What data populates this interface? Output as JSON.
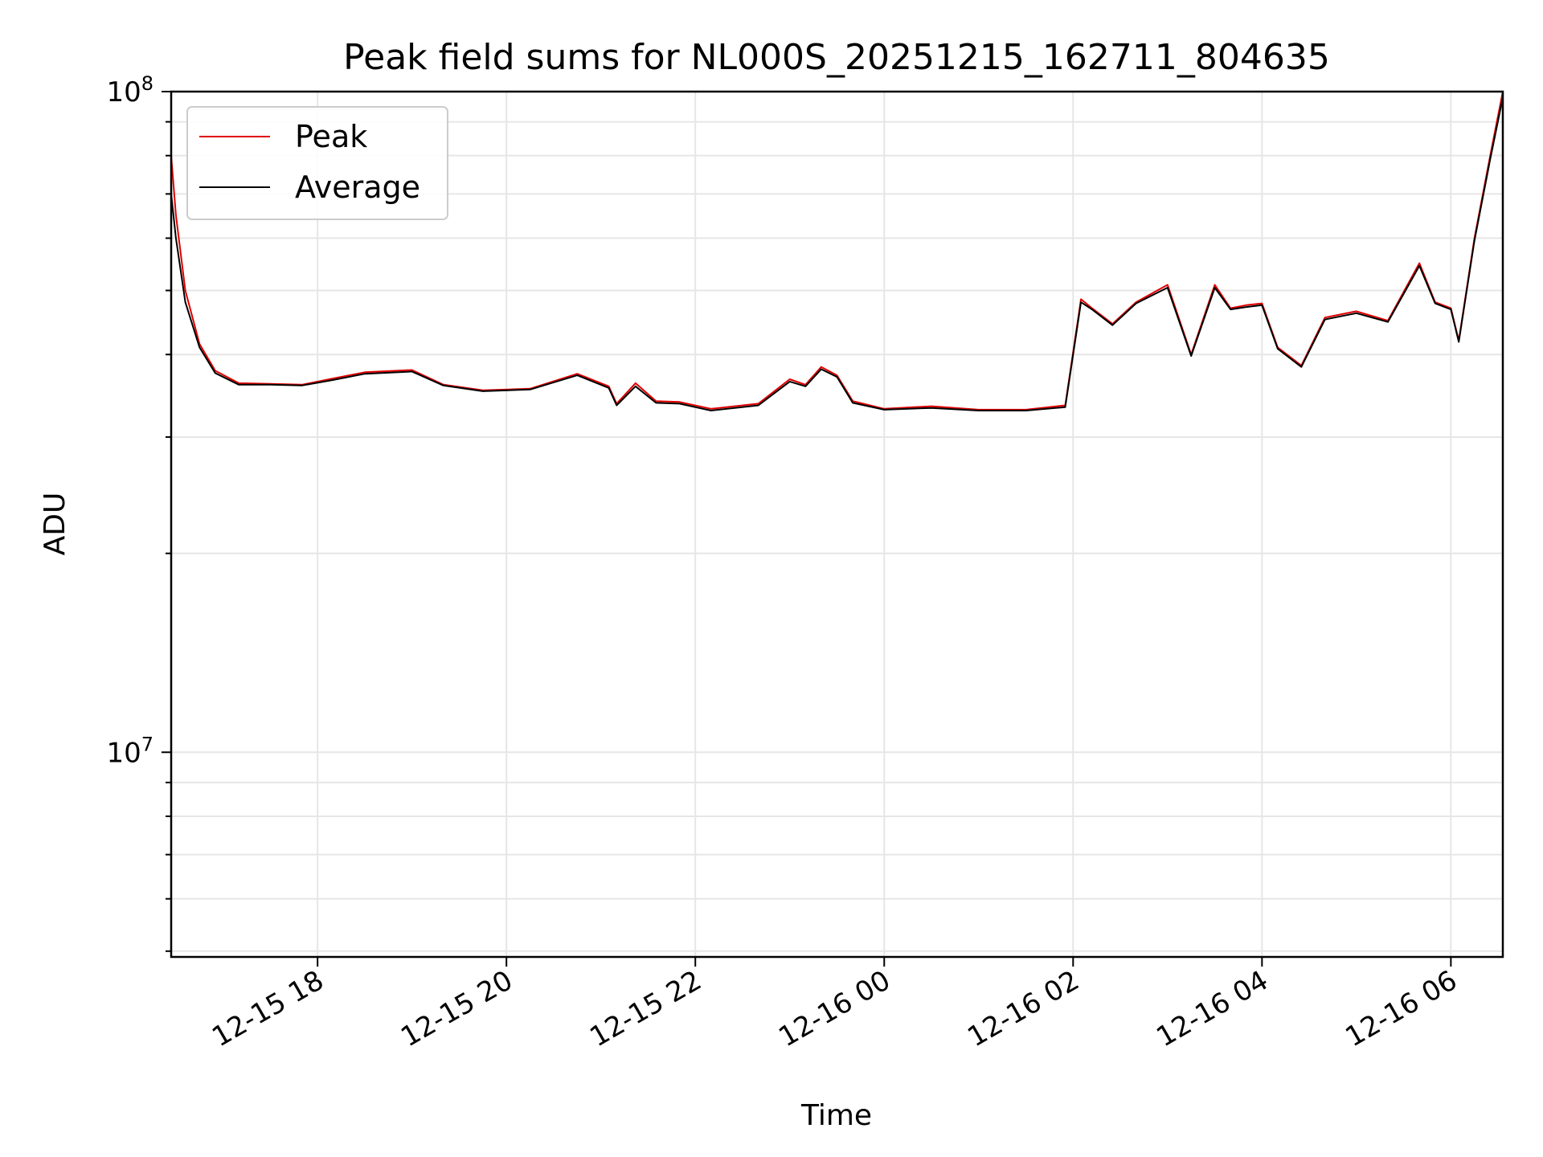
{
  "chart_data": {
    "type": "line",
    "title": "Peak field sums for NL000S_20251215_162711_804635",
    "xlabel": "Time",
    "ylabel": "ADU",
    "yscale": "log",
    "grid": true,
    "legend_position": "top-left",
    "xlim": [
      "2025-12-15 16:27",
      "2025-12-16 06:33"
    ],
    "ylim": [
      4900000,
      100000000
    ],
    "x_ticks": [
      {
        "value": "2025-12-15 18:00",
        "label": "12-15 18"
      },
      {
        "value": "2025-12-15 20:00",
        "label": "12-15 20"
      },
      {
        "value": "2025-12-15 22:00",
        "label": "12-15 22"
      },
      {
        "value": "2025-12-16 00:00",
        "label": "12-16 00"
      },
      {
        "value": "2025-12-16 02:00",
        "label": "12-16 02"
      },
      {
        "value": "2025-12-16 04:00",
        "label": "12-16 04"
      },
      {
        "value": "2025-12-16 06:00",
        "label": "12-16 06"
      }
    ],
    "y_ticks": [
      {
        "value": 10000000,
        "base": "10",
        "exp": "7"
      },
      {
        "value": 100000000,
        "base": "10",
        "exp": "8"
      }
    ],
    "x": [
      "2025-12-15 16:27",
      "2025-12-15 16:30",
      "2025-12-15 16:36",
      "2025-12-15 16:45",
      "2025-12-15 16:55",
      "2025-12-15 17:10",
      "2025-12-15 17:30",
      "2025-12-15 17:50",
      "2025-12-15 18:10",
      "2025-12-15 18:30",
      "2025-12-15 19:00",
      "2025-12-15 19:20",
      "2025-12-15 19:45",
      "2025-12-15 20:15",
      "2025-12-15 20:45",
      "2025-12-15 21:05",
      "2025-12-15 21:10",
      "2025-12-15 21:22",
      "2025-12-15 21:35",
      "2025-12-15 21:50",
      "2025-12-15 22:10",
      "2025-12-15 22:40",
      "2025-12-15 23:00",
      "2025-12-15 23:10",
      "2025-12-15 23:20",
      "2025-12-15 23:30",
      "2025-12-15 23:40",
      "2025-12-15 24:00",
      "2025-12-16 00:30",
      "2025-12-16 01:00",
      "2025-12-16 01:30",
      "2025-12-16 01:55",
      "2025-12-16 02:05",
      "2025-12-16 02:12",
      "2025-12-16 02:25",
      "2025-12-16 02:40",
      "2025-12-16 03:00",
      "2025-12-16 03:15",
      "2025-12-16 03:30",
      "2025-12-16 03:40",
      "2025-12-16 03:50",
      "2025-12-16 04:00",
      "2025-12-16 04:10",
      "2025-12-16 04:25",
      "2025-12-16 04:40",
      "2025-12-16 05:00",
      "2025-12-16 05:20",
      "2025-12-16 05:40",
      "2025-12-16 05:50",
      "2025-12-16 06:00",
      "2025-12-16 06:05",
      "2025-12-16 06:15",
      "2025-12-16 06:25",
      "2025-12-16 06:33"
    ],
    "series": [
      {
        "name": "Peak",
        "color": "#e00000",
        "values": [
          80000000,
          65000000,
          50000000,
          41500000,
          37800000,
          36200000,
          36100000,
          36000000,
          36800000,
          37600000,
          37900000,
          36000000,
          35300000,
          35500000,
          37400000,
          35800000,
          33700000,
          36200000,
          34000000,
          33900000,
          33100000,
          33700000,
          36700000,
          36000000,
          38300000,
          37200000,
          34000000,
          33100000,
          33400000,
          33000000,
          33000000,
          33500000,
          48500000,
          47000000,
          44500000,
          48000000,
          51000000,
          40000000,
          51000000,
          47000000,
          47500000,
          47800000,
          41000000,
          38500000,
          45500000,
          46500000,
          45000000,
          55000000,
          48000000,
          47000000,
          42000000,
          60000000,
          80000000,
          100000000
        ]
      },
      {
        "name": "Average",
        "color": "#000000",
        "values": [
          70000000,
          60000000,
          48000000,
          41000000,
          37500000,
          36000000,
          36000000,
          35900000,
          36600000,
          37400000,
          37700000,
          35900000,
          35200000,
          35400000,
          37200000,
          35600000,
          33500000,
          35800000,
          33800000,
          33700000,
          32900000,
          33500000,
          36400000,
          35800000,
          38000000,
          37000000,
          33800000,
          33000000,
          33200000,
          32900000,
          32900000,
          33300000,
          48000000,
          46800000,
          44300000,
          47800000,
          50500000,
          39800000,
          50500000,
          46800000,
          47200000,
          47500000,
          40800000,
          38300000,
          45200000,
          46200000,
          44800000,
          54500000,
          47800000,
          46800000,
          41800000,
          59500000,
          79000000,
          98000000
        ]
      }
    ]
  }
}
